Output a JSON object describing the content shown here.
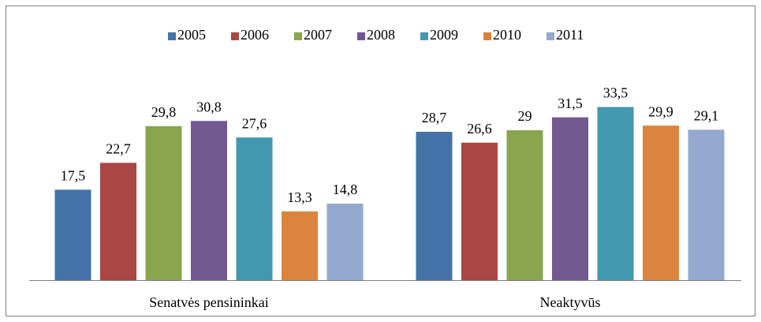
{
  "chart_data": {
    "type": "bar",
    "categories": [
      "Senatvės pensininkai",
      "Neaktyvūs"
    ],
    "series": [
      {
        "name": "2005",
        "color": "#4572a7",
        "values": [
          17.5,
          28.7
        ],
        "value_labels": [
          "17,5",
          "28,7"
        ]
      },
      {
        "name": "2006",
        "color": "#aa4643",
        "values": [
          22.7,
          26.6
        ],
        "value_labels": [
          "22,7",
          "26,6"
        ]
      },
      {
        "name": "2007",
        "color": "#89a54e",
        "values": [
          29.8,
          29
        ],
        "value_labels": [
          "29,8",
          "29"
        ]
      },
      {
        "name": "2008",
        "color": "#71588f",
        "values": [
          30.8,
          31.5
        ],
        "value_labels": [
          "30,8",
          "31,5"
        ]
      },
      {
        "name": "2009",
        "color": "#4198af",
        "values": [
          27.6,
          33.5
        ],
        "value_labels": [
          "27,6",
          "33,5"
        ]
      },
      {
        "name": "2010",
        "color": "#db843d",
        "values": [
          13.3,
          29.9
        ],
        "value_labels": [
          "13,3",
          "29,9"
        ]
      },
      {
        "name": "2011",
        "color": "#93a9cf",
        "values": [
          14.8,
          29.1
        ],
        "value_labels": [
          "14,8",
          "29,1"
        ]
      }
    ],
    "legend": "top"
  }
}
